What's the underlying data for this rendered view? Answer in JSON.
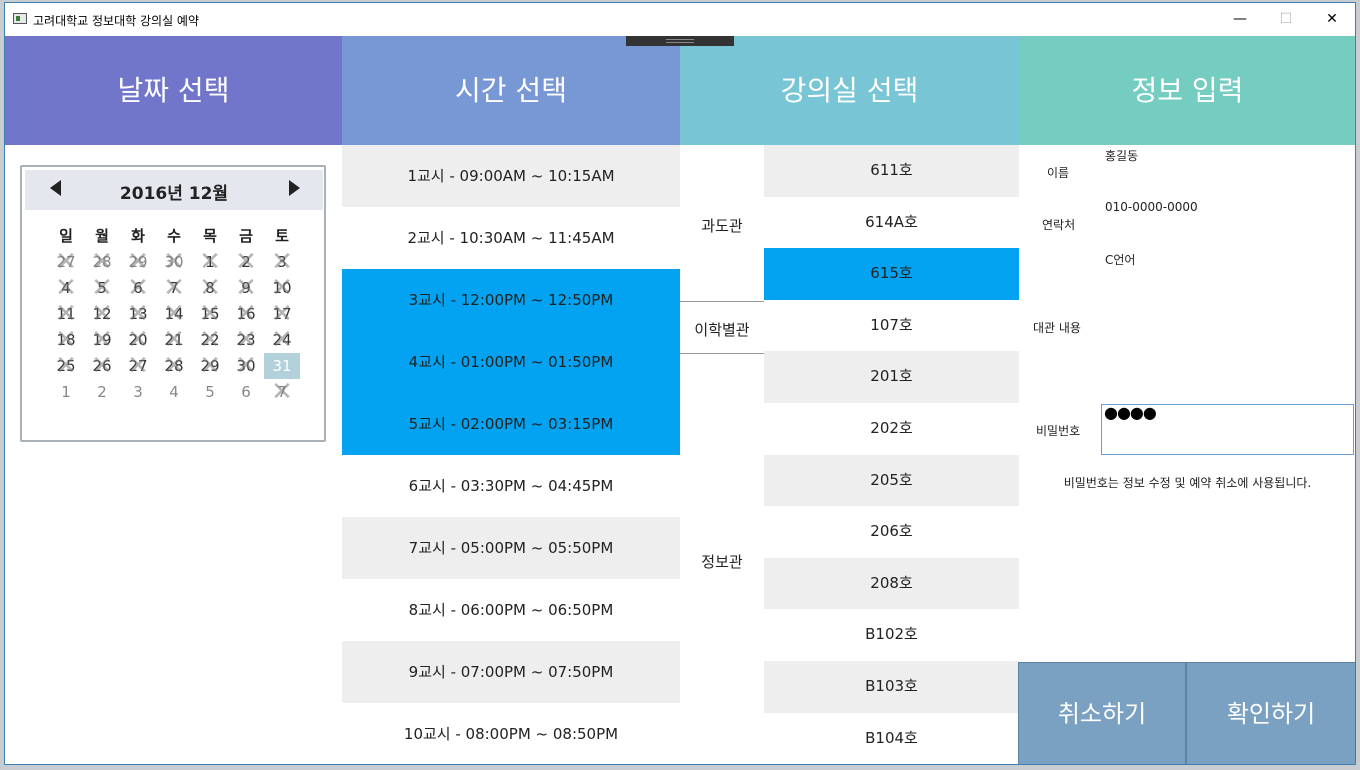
{
  "window": {
    "title": "고려대학교 정보대학 강의실 예약",
    "minimize": "—",
    "maximize": "☐",
    "close": "✕"
  },
  "headers": [
    "날짜 선택",
    "시간 선택",
    "강의실 선택",
    "정보 입력"
  ],
  "calendar": {
    "title": "2016년 12월",
    "weekdays": [
      "일",
      "월",
      "화",
      "수",
      "목",
      "금",
      "토"
    ],
    "weeks": [
      [
        {
          "d": "27",
          "b": true,
          "o": true
        },
        {
          "d": "28",
          "b": true,
          "o": true
        },
        {
          "d": "29",
          "b": true,
          "o": true
        },
        {
          "d": "30",
          "b": true,
          "o": true
        },
        {
          "d": "1",
          "b": true
        },
        {
          "d": "2",
          "b": true
        },
        {
          "d": "3",
          "b": true
        }
      ],
      [
        {
          "d": "4",
          "b": true
        },
        {
          "d": "5",
          "b": true
        },
        {
          "d": "6",
          "b": true
        },
        {
          "d": "7",
          "b": true
        },
        {
          "d": "8",
          "b": true
        },
        {
          "d": "9",
          "b": true
        },
        {
          "d": "10",
          "b": true
        }
      ],
      [
        {
          "d": "11",
          "b": true
        },
        {
          "d": "12",
          "b": true
        },
        {
          "d": "13",
          "b": true
        },
        {
          "d": "14",
          "b": true
        },
        {
          "d": "15",
          "b": true
        },
        {
          "d": "16",
          "b": true
        },
        {
          "d": "17",
          "b": true
        }
      ],
      [
        {
          "d": "18",
          "b": true
        },
        {
          "d": "19",
          "b": true
        },
        {
          "d": "20",
          "b": true
        },
        {
          "d": "21",
          "b": true
        },
        {
          "d": "22",
          "b": true
        },
        {
          "d": "23",
          "b": true
        },
        {
          "d": "24",
          "b": true
        }
      ],
      [
        {
          "d": "25",
          "b": true
        },
        {
          "d": "26",
          "b": true
        },
        {
          "d": "27",
          "b": true
        },
        {
          "d": "28",
          "b": true
        },
        {
          "d": "29",
          "b": true
        },
        {
          "d": "30",
          "b": true
        },
        {
          "d": "31",
          "s": true
        }
      ],
      [
        {
          "d": "1",
          "o": true
        },
        {
          "d": "2",
          "o": true
        },
        {
          "d": "3",
          "o": true
        },
        {
          "d": "4",
          "o": true
        },
        {
          "d": "5",
          "o": true
        },
        {
          "d": "6",
          "o": true
        },
        {
          "d": "7",
          "o": true,
          "b": true
        }
      ]
    ]
  },
  "time_slots": [
    {
      "label": "1교시 - 09:00AM ~ 10:15AM",
      "selected": false
    },
    {
      "label": "2교시 - 10:30AM ~ 11:45AM",
      "selected": false
    },
    {
      "label": "3교시 - 12:00PM ~ 12:50PM",
      "selected": true
    },
    {
      "label": "4교시 - 01:00PM ~ 01:50PM",
      "selected": true
    },
    {
      "label": "5교시 - 02:00PM ~ 03:15PM",
      "selected": true
    },
    {
      "label": "6교시 - 03:30PM ~ 04:45PM",
      "selected": false
    },
    {
      "label": "7교시 - 05:00PM ~ 05:50PM",
      "selected": false
    },
    {
      "label": "8교시 - 06:00PM ~ 06:50PM",
      "selected": false
    },
    {
      "label": "9교시 - 07:00PM ~ 07:50PM",
      "selected": false
    },
    {
      "label": "10교시 - 08:00PM ~ 08:50PM",
      "selected": false
    }
  ],
  "buildings": [
    "과도관",
    "이학별관",
    "정보관"
  ],
  "rooms": [
    {
      "label": "611호",
      "selected": false
    },
    {
      "label": "614A호",
      "selected": false
    },
    {
      "label": "615호",
      "selected": true
    },
    {
      "label": "107호",
      "selected": false
    },
    {
      "label": "201호",
      "selected": false
    },
    {
      "label": "202호",
      "selected": false
    },
    {
      "label": "205호",
      "selected": false
    },
    {
      "label": "206호",
      "selected": false
    },
    {
      "label": "208호",
      "selected": false
    },
    {
      "label": "B102호",
      "selected": false
    },
    {
      "label": "B103호",
      "selected": false
    },
    {
      "label": "B104호",
      "selected": false
    }
  ],
  "form": {
    "name_label": "이름",
    "name_value": "홍길동",
    "contact_label": "연락처",
    "contact_value": "010-0000-0000",
    "content_label": "대관 내용",
    "content_value": "C언어",
    "password_label": "비밀번호",
    "password_value": "●●●●",
    "password_hint": "비밀번호는 정보 수정 및 예약 취소에 사용됩니다."
  },
  "buttons": {
    "cancel": "취소하기",
    "confirm": "확인하기"
  }
}
